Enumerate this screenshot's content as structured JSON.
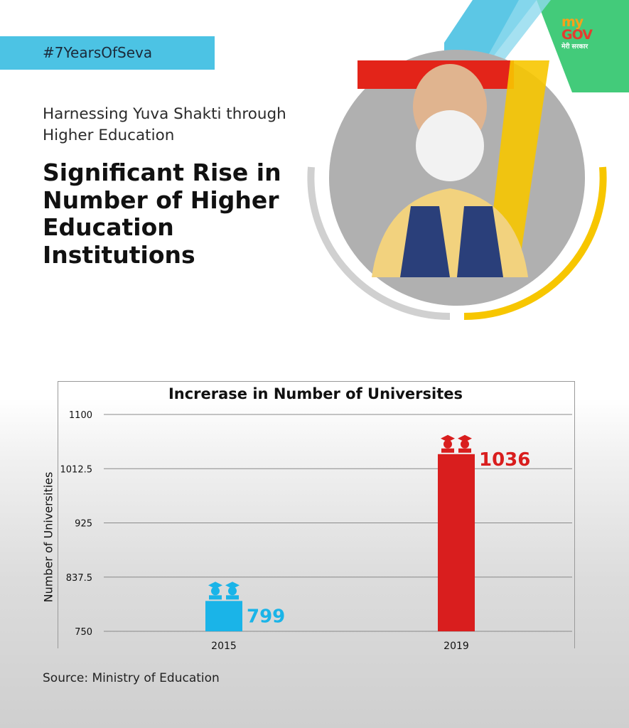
{
  "hashtag": "#7YearsOfSeva",
  "logo": {
    "my": "my",
    "gov": "GOV",
    "tagline": "मेरी सरकार"
  },
  "subtitle": "Harnessing Yuva Shakti through Higher Education",
  "headline": "Significant Rise in Number of Higher Education Institutions",
  "source": "Source: Ministry of Education",
  "colors": {
    "accent_blue": "#4cc3e4",
    "bar_2015": "#1ab4e8",
    "bar_2019": "#d91e1e",
    "yellow": "#f7c600",
    "green": "#2fc56b"
  },
  "chart_data": {
    "type": "bar",
    "title": "Increrase in Number of Universites",
    "xlabel": "",
    "ylabel": "Number of Universities",
    "categories": [
      "2015",
      "2019"
    ],
    "values": [
      799,
      1036
    ],
    "value_labels": [
      "799",
      "1036"
    ],
    "bar_colors": [
      "#1ab4e8",
      "#d91e1e"
    ],
    "ylim": [
      750,
      1100
    ],
    "yticks": [
      750,
      837.5,
      925,
      1012.5,
      1100
    ],
    "ytick_labels": [
      "750",
      "837.5",
      "925",
      "1012.5",
      "1100"
    ],
    "grid": true,
    "legend": "none"
  }
}
